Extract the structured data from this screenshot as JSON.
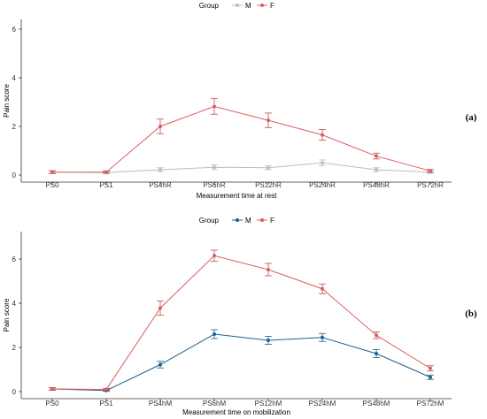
{
  "colors": {
    "female_line": "#d95f5f",
    "female_errorbar": "#c24a4a",
    "male_rest": "#bdbdbd",
    "male_mobilization": "#1f5f8b",
    "axis": "#333333"
  },
  "chart_data": [
    {
      "type": "line",
      "panel_label": "(a)",
      "xlabel": "Measurement time at rest",
      "ylabel": "Pain score",
      "categories": [
        "PS0",
        "PS1",
        "PS4hR",
        "PS6hR",
        "PS12hR",
        "PS24hR",
        "PS48hR",
        "PS72hR"
      ],
      "ylim": [
        0,
        6
      ],
      "yticks": [
        "0",
        "2",
        "4",
        "6"
      ],
      "legend": {
        "title": "Group",
        "position": "top",
        "labels": [
          "M",
          "F"
        ]
      },
      "grid": false,
      "series": [
        {
          "name": "M",
          "color": "#bdbdbd",
          "values": [
            0.12,
            0.1,
            0.22,
            0.32,
            0.3,
            0.5,
            0.22,
            0.12
          ],
          "errors": [
            0.05,
            0.04,
            0.08,
            0.1,
            0.08,
            0.12,
            0.08,
            0.05
          ]
        },
        {
          "name": "F",
          "color": "#d95f5f",
          "values": [
            0.12,
            0.12,
            2.0,
            2.82,
            2.25,
            1.65,
            0.78,
            0.17
          ],
          "errors": [
            0.06,
            0.05,
            0.3,
            0.32,
            0.3,
            0.22,
            0.12,
            0.06
          ]
        }
      ]
    },
    {
      "type": "line",
      "panel_label": "(b)",
      "xlabel": "Measurement time on mobilization",
      "ylabel": "Pain score",
      "categories": [
        "PS0",
        "PS1",
        "PS4hM",
        "PS6hM",
        "PS12hM",
        "PS24hM",
        "PS48hM",
        "PS72hM"
      ],
      "ylim": [
        0,
        6.4
      ],
      "yticks": [
        "0",
        "2",
        "4",
        "6"
      ],
      "legend": {
        "title": "Group",
        "position": "top",
        "labels": [
          "M",
          "F"
        ]
      },
      "grid": false,
      "series": [
        {
          "name": "M",
          "color": "#1f5f8b",
          "values": [
            0.12,
            0.05,
            1.22,
            2.6,
            2.32,
            2.45,
            1.72,
            0.65
          ],
          "errors": [
            0.05,
            0.04,
            0.15,
            0.2,
            0.18,
            0.18,
            0.18,
            0.1
          ]
        },
        {
          "name": "F",
          "color": "#d95f5f",
          "values": [
            0.12,
            0.1,
            3.78,
            6.15,
            5.52,
            4.65,
            2.55,
            1.05
          ],
          "errors": [
            0.06,
            0.05,
            0.32,
            0.25,
            0.28,
            0.22,
            0.15,
            0.12
          ]
        }
      ]
    }
  ]
}
